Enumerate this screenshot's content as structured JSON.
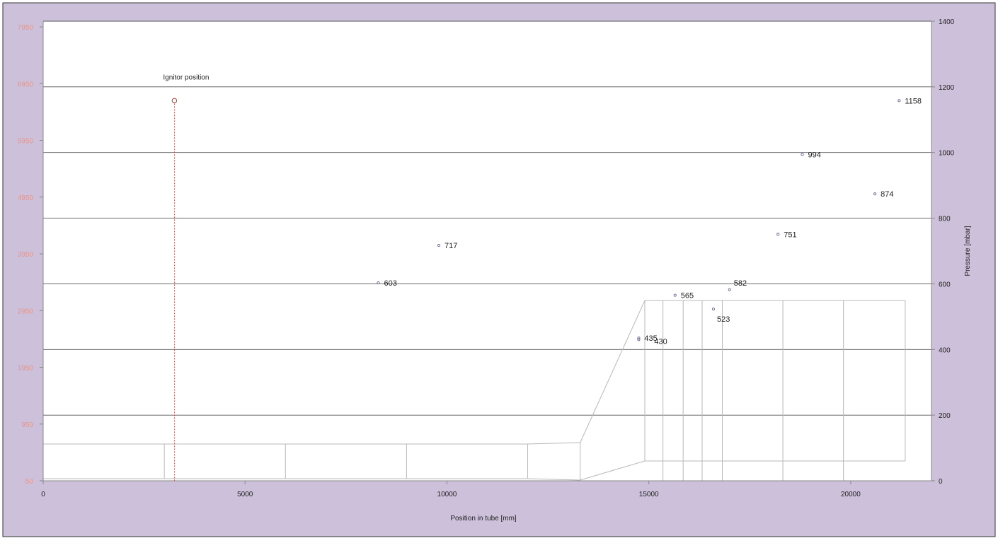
{
  "colors": {
    "frame_background": "#ccc0da",
    "plot_background": "#ffffff",
    "left_axis_text": "#e6968c",
    "ignitor": "#c0392b",
    "markers": "#6b6b9c",
    "gridline": "#555555",
    "tube_outline": "#b8b8b8"
  },
  "chart_data": {
    "type": "scatter",
    "title": "",
    "xlabel": "Position in tube [mm]",
    "ylabel": "Pressure [mbar]",
    "xlim": [
      0,
      22000
    ],
    "ylim": [
      0,
      1400
    ],
    "left_ylim": [
      -50,
      8050
    ],
    "grid": "horizontal",
    "x_ticks": [
      {
        "value": 0,
        "label": "0"
      },
      {
        "value": 5000,
        "label": "5000"
      },
      {
        "value": 10000,
        "label": "10000"
      },
      {
        "value": 15000,
        "label": "15000"
      },
      {
        "value": 20000,
        "label": "20000"
      }
    ],
    "y_ticks": [
      {
        "value": 0,
        "label": "0"
      },
      {
        "value": 200,
        "label": "200"
      },
      {
        "value": 400,
        "label": "400"
      },
      {
        "value": 600,
        "label": "600"
      },
      {
        "value": 800,
        "label": "800"
      },
      {
        "value": 1000,
        "label": "1000"
      },
      {
        "value": 1200,
        "label": "1200"
      },
      {
        "value": 1400,
        "label": "1400"
      }
    ],
    "left_y_ticks": [
      {
        "value": -50,
        "label": "-50"
      },
      {
        "value": 950,
        "label": "950"
      },
      {
        "value": 1950,
        "label": "1950"
      },
      {
        "value": 2950,
        "label": "2950"
      },
      {
        "value": 3950,
        "label": "3950"
      },
      {
        "value": 4950,
        "label": "4950"
      },
      {
        "value": 5950,
        "label": "5950"
      },
      {
        "value": 6950,
        "label": "6950"
      },
      {
        "value": 7950,
        "label": "7950"
      }
    ],
    "series": [
      {
        "points": [
          {
            "x": 8300,
            "y": 603,
            "label": "603"
          },
          {
            "x": 9800,
            "y": 717,
            "label": "717"
          },
          {
            "x": 14750,
            "y": 435,
            "label": "435"
          },
          {
            "x": 14750,
            "y": 430,
            "label": "430"
          },
          {
            "x": 15650,
            "y": 565,
            "label": "565"
          },
          {
            "x": 16600,
            "y": 523,
            "label": "523"
          },
          {
            "x": 17000,
            "y": 582,
            "label": "582"
          },
          {
            "x": 18200,
            "y": 751,
            "label": "751"
          },
          {
            "x": 18800,
            "y": 994,
            "label": "994"
          },
          {
            "x": 20600,
            "y": 874,
            "label": "874"
          },
          {
            "x": 21200,
            "y": 1158,
            "label": "1158"
          }
        ]
      }
    ],
    "annotations": [
      {
        "text": "Ignitor position",
        "x": 3250,
        "y": 1158
      }
    ]
  }
}
